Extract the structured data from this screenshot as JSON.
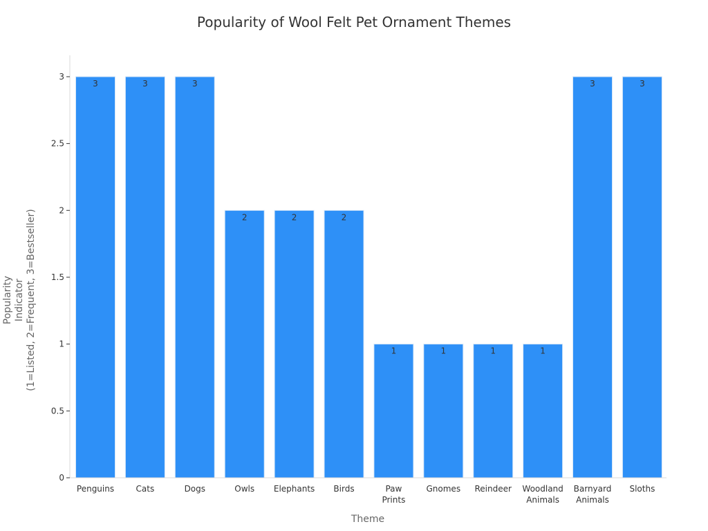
{
  "chart_data": {
    "type": "bar",
    "title": "Popularity of Wool Felt Pet Ornament Themes",
    "xlabel": "Theme",
    "ylabel_lines": [
      "Popularity",
      "Indicator",
      "(1=Listed, 2=Frequent, 3=Bestseller)"
    ],
    "categories": [
      [
        "Penguins"
      ],
      [
        "Cats"
      ],
      [
        "Dogs"
      ],
      [
        "Owls"
      ],
      [
        "Elephants"
      ],
      [
        "Birds"
      ],
      [
        "Paw",
        "Prints"
      ],
      [
        "Gnomes"
      ],
      [
        "Reindeer"
      ],
      [
        "Woodland",
        "Animals"
      ],
      [
        "Barnyard",
        "Animals"
      ],
      [
        "Sloths"
      ]
    ],
    "values": [
      3,
      3,
      3,
      2,
      2,
      2,
      1,
      1,
      1,
      1,
      3,
      3
    ],
    "ylim": [
      0,
      3.16
    ],
    "yticks": [
      0,
      0.5,
      1,
      1.5,
      2,
      2.5,
      3
    ],
    "ytick_labels": [
      "0",
      "0.5",
      "1",
      "1.5",
      "2",
      "2.5",
      "3"
    ],
    "grid": false,
    "bar_color": "#2e90f7",
    "bar_edge_color": "#d6e6f7"
  }
}
